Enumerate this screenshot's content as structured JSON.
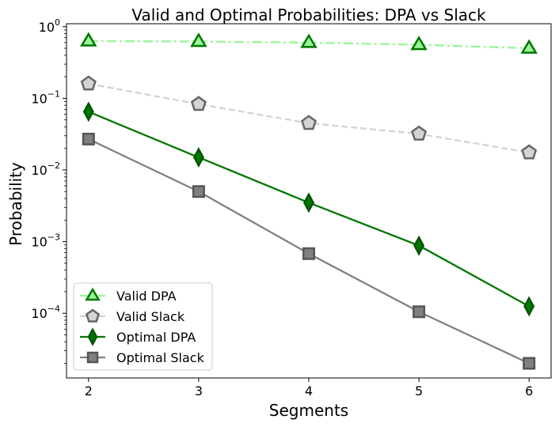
{
  "chart_data": {
    "type": "line",
    "title": "Valid and Optimal Probabilities: DPA vs Slack",
    "xlabel": "Segments",
    "ylabel": "Probability",
    "x": [
      2,
      3,
      4,
      5,
      6
    ],
    "xticks": [
      "2",
      "3",
      "4",
      "5",
      "6"
    ],
    "yscale": "log",
    "ylim": [
      1.25e-05,
      1.1
    ],
    "yticks": [
      {
        "value": 1,
        "base": "10",
        "exp": "0"
      },
      {
        "value": 0.1,
        "base": "10",
        "exp": "−1"
      },
      {
        "value": 0.01,
        "base": "10",
        "exp": "−2"
      },
      {
        "value": 0.001,
        "base": "10",
        "exp": "−3"
      },
      {
        "value": 0.0001,
        "base": "10",
        "exp": "−4"
      }
    ],
    "legend_position": "lower-left",
    "series": [
      {
        "name": "Valid DPA",
        "values": [
          0.63,
          0.62,
          0.6,
          0.56,
          0.5
        ],
        "line_color": "#98f598",
        "marker_fill": "#98f598",
        "marker_edge": "#007700",
        "marker": "triangle",
        "dash": "dashdot"
      },
      {
        "name": "Valid Slack",
        "values": [
          0.16,
          0.083,
          0.045,
          0.032,
          0.0175
        ],
        "line_color": "#d3d3d3",
        "marker_fill": "#d3d3d3",
        "marker_edge": "#666666",
        "marker": "pentagon",
        "dash": "dashed"
      },
      {
        "name": "Optimal DPA",
        "values": [
          0.065,
          0.015,
          0.0035,
          0.00088,
          0.000125
        ],
        "line_color": "#007700",
        "marker_fill": "#007700",
        "marker_edge": "#005500",
        "marker": "diamond",
        "dash": "solid"
      },
      {
        "name": "Optimal Slack",
        "values": [
          0.027,
          0.005,
          0.00068,
          0.000105,
          2e-05
        ],
        "line_color": "#808080",
        "marker_fill": "#808080",
        "marker_edge": "#555555",
        "marker": "square",
        "dash": "solid"
      }
    ]
  }
}
